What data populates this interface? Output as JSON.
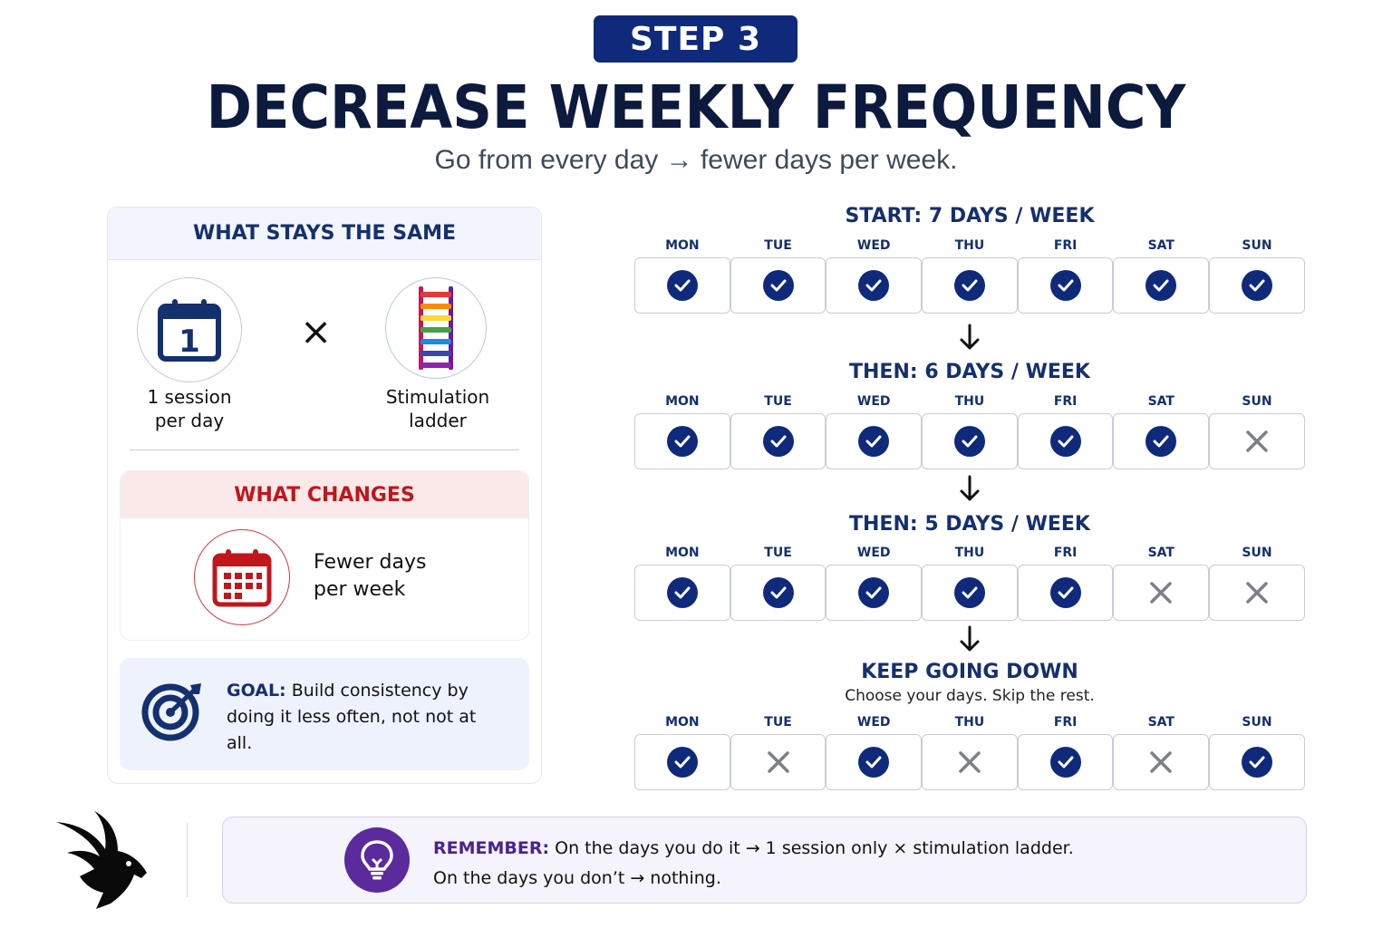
{
  "header": {
    "step": "STEP 3",
    "title": "DECREASE WEEKLY FREQUENCY",
    "subtitle": "Go from every day → fewer days per week."
  },
  "left_panel": {
    "same_title": "WHAT STAYS THE SAME",
    "calendar_number": "1",
    "session_label_line1": "1 session",
    "session_label_line2": "per day",
    "times": "×",
    "ladder_label_line1": "Stimulation",
    "ladder_label_line2": "ladder",
    "changes_title": "WHAT CHANGES",
    "changes_text_line1": "Fewer days",
    "changes_text_line2": "per week",
    "goal_label": "GOAL:",
    "goal_text": "Build consistency by doing it less often, not not at all."
  },
  "schedules": [
    {
      "title": "START: 7 DAYS / WEEK",
      "days": [
        {
          "label": "MON",
          "status": "done"
        },
        {
          "label": "TUE",
          "status": "done"
        },
        {
          "label": "WED",
          "status": "done"
        },
        {
          "label": "THU",
          "status": "done"
        },
        {
          "label": "FRI",
          "status": "done"
        },
        {
          "label": "SAT",
          "status": "done"
        },
        {
          "label": "SUN",
          "status": "done"
        }
      ]
    },
    {
      "title": "THEN: 6 DAYS / WEEK",
      "days": [
        {
          "label": "MON",
          "status": "done"
        },
        {
          "label": "TUE",
          "status": "done"
        },
        {
          "label": "WED",
          "status": "done"
        },
        {
          "label": "THU",
          "status": "done"
        },
        {
          "label": "FRI",
          "status": "done"
        },
        {
          "label": "SAT",
          "status": "done"
        },
        {
          "label": "SUN",
          "status": "skip"
        }
      ]
    },
    {
      "title": "THEN: 5 DAYS / WEEK",
      "days": [
        {
          "label": "MON",
          "status": "done"
        },
        {
          "label": "TUE",
          "status": "done"
        },
        {
          "label": "WED",
          "status": "done"
        },
        {
          "label": "THU",
          "status": "done"
        },
        {
          "label": "FRI",
          "status": "done"
        },
        {
          "label": "SAT",
          "status": "skip"
        },
        {
          "label": "SUN",
          "status": "skip"
        }
      ]
    },
    {
      "title": "KEEP GOING DOWN",
      "note": "Choose your days. Skip the rest.",
      "days": [
        {
          "label": "MON",
          "status": "done"
        },
        {
          "label": "TUE",
          "status": "skip"
        },
        {
          "label": "WED",
          "status": "done"
        },
        {
          "label": "THU",
          "status": "skip"
        },
        {
          "label": "FRI",
          "status": "done"
        },
        {
          "label": "SAT",
          "status": "skip"
        },
        {
          "label": "SUN",
          "status": "done"
        }
      ]
    }
  ],
  "remember": {
    "label": "REMEMBER:",
    "line1": "On the days you do it → 1 session only × stimulation ladder.",
    "line2": "On the days you don’t → nothing."
  },
  "icons": {
    "calendar": "calendar-one-icon",
    "ladder": "rainbow-ladder-icon",
    "changes": "calendar-grid-icon",
    "goal": "target-arrow-icon",
    "bulb": "lightbulb-icon",
    "logo": "rabbit-logo-icon",
    "check": "check-circle-icon",
    "cross": "x-mark-icon",
    "arrow": "down-arrow-icon"
  },
  "colors": {
    "navy": "#0f2a7a",
    "red": "#c0161c",
    "purple": "#5b2a9c",
    "grey_x": "#7d8088"
  }
}
